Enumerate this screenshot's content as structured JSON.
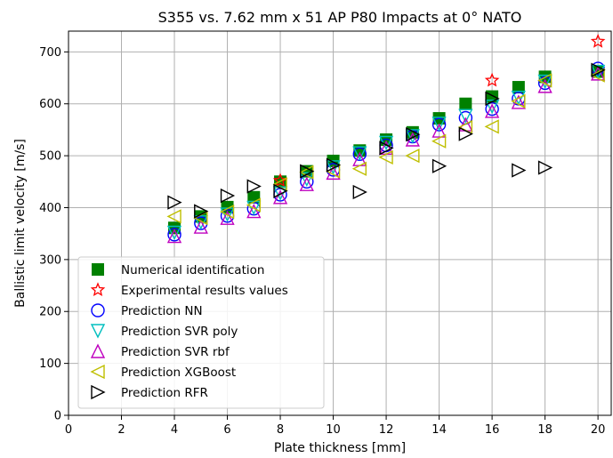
{
  "chart_data": {
    "type": "scatter",
    "title": "S355 vs. 7.62 mm x 51 AP P80 Impacts at 0° NATO",
    "xlabel": "Plate thickness [mm]",
    "ylabel": "Ballistic limit velocity [m/s]",
    "xlim": [
      0,
      20.5
    ],
    "ylim": [
      0,
      740
    ],
    "xticks": [
      "0",
      "2",
      "4",
      "6",
      "8",
      "10",
      "12",
      "14",
      "16",
      "18",
      "20"
    ],
    "yticks": [
      "0",
      "100",
      "200",
      "300",
      "400",
      "500",
      "600",
      "700"
    ],
    "grid": true,
    "legend_position": "lower-left",
    "series": [
      {
        "name": "Numerical identification",
        "marker": "square",
        "color": "#008000",
        "points": [
          [
            4,
            361
          ],
          [
            5,
            383
          ],
          [
            6,
            401
          ],
          [
            7,
            420
          ],
          [
            8,
            450
          ],
          [
            9,
            470
          ],
          [
            10,
            490
          ],
          [
            11,
            510
          ],
          [
            12,
            531
          ],
          [
            13,
            545
          ],
          [
            14,
            572
          ],
          [
            15,
            600
          ],
          [
            16,
            614
          ],
          [
            17,
            632
          ],
          [
            18,
            652
          ],
          [
            20,
            662
          ]
        ]
      },
      {
        "name": "Experimental results values",
        "marker": "star",
        "color": "#ff0000",
        "points": [
          [
            8,
            452
          ],
          [
            16,
            645
          ],
          [
            20,
            720
          ]
        ]
      },
      {
        "name": "Prediction NN",
        "marker": "circle",
        "color": "#0000ff",
        "points": [
          [
            4,
            348
          ],
          [
            5,
            370
          ],
          [
            6,
            384
          ],
          [
            7,
            398
          ],
          [
            8,
            425
          ],
          [
            9,
            450
          ],
          [
            10,
            473
          ],
          [
            11,
            503
          ],
          [
            12,
            520
          ],
          [
            13,
            537
          ],
          [
            14,
            560
          ],
          [
            15,
            573
          ],
          [
            16,
            590
          ],
          [
            17,
            610
          ],
          [
            18,
            640
          ],
          [
            20,
            668
          ]
        ]
      },
      {
        "name": "Prediction SVR poly",
        "marker": "triangle-down",
        "color": "#00bfbf",
        "points": [
          [
            4,
            352
          ],
          [
            5,
            372
          ],
          [
            6,
            387
          ],
          [
            7,
            400
          ],
          [
            8,
            428
          ],
          [
            9,
            455
          ],
          [
            10,
            478
          ],
          [
            11,
            505
          ],
          [
            12,
            525
          ],
          [
            13,
            538
          ],
          [
            14,
            562
          ],
          [
            15,
            577
          ],
          [
            16,
            595
          ],
          [
            17,
            612
          ],
          [
            18,
            643
          ],
          [
            20,
            662
          ]
        ]
      },
      {
        "name": "Prediction SVR rbf",
        "marker": "triangle-up",
        "color": "#bf00bf",
        "points": [
          [
            4,
            345
          ],
          [
            5,
            363
          ],
          [
            6,
            380
          ],
          [
            7,
            393
          ],
          [
            8,
            420
          ],
          [
            9,
            445
          ],
          [
            10,
            467
          ],
          [
            11,
            493
          ],
          [
            12,
            515
          ],
          [
            13,
            531
          ],
          [
            14,
            548
          ],
          [
            15,
            560
          ],
          [
            16,
            586
          ],
          [
            17,
            603
          ],
          [
            18,
            634
          ],
          [
            20,
            658
          ]
        ]
      },
      {
        "name": "Prediction XGBoost",
        "marker": "triangle-left",
        "color": "#bfbf00",
        "points": [
          [
            4,
            383
          ],
          [
            5,
            380
          ],
          [
            6,
            392
          ],
          [
            7,
            405
          ],
          [
            8,
            445
          ],
          [
            9,
            468
          ],
          [
            10,
            470
          ],
          [
            11,
            475
          ],
          [
            12,
            497
          ],
          [
            13,
            500
          ],
          [
            14,
            528
          ],
          [
            15,
            555
          ],
          [
            16,
            556
          ],
          [
            17,
            605
          ],
          [
            18,
            645
          ],
          [
            20,
            655
          ]
        ]
      },
      {
        "name": "Prediction RFR",
        "marker": "triangle-right",
        "color": "#000000",
        "points": [
          [
            4,
            410
          ],
          [
            5,
            393
          ],
          [
            6,
            423
          ],
          [
            7,
            441
          ],
          [
            8,
            432
          ],
          [
            9,
            470
          ],
          [
            10,
            482
          ],
          [
            11,
            430
          ],
          [
            12,
            515
          ],
          [
            13,
            541
          ],
          [
            14,
            480
          ],
          [
            15,
            542
          ],
          [
            16,
            610
          ],
          [
            17,
            472
          ],
          [
            18,
            477
          ],
          [
            20,
            665
          ]
        ]
      }
    ]
  }
}
